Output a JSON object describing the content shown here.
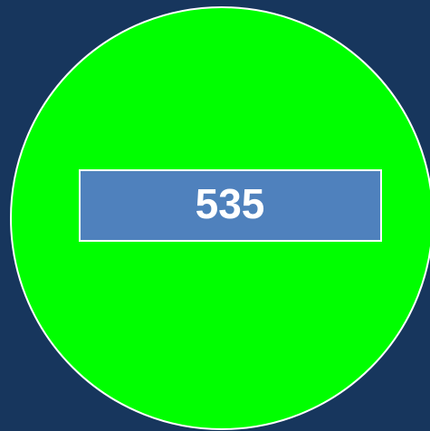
{
  "label": "535"
}
